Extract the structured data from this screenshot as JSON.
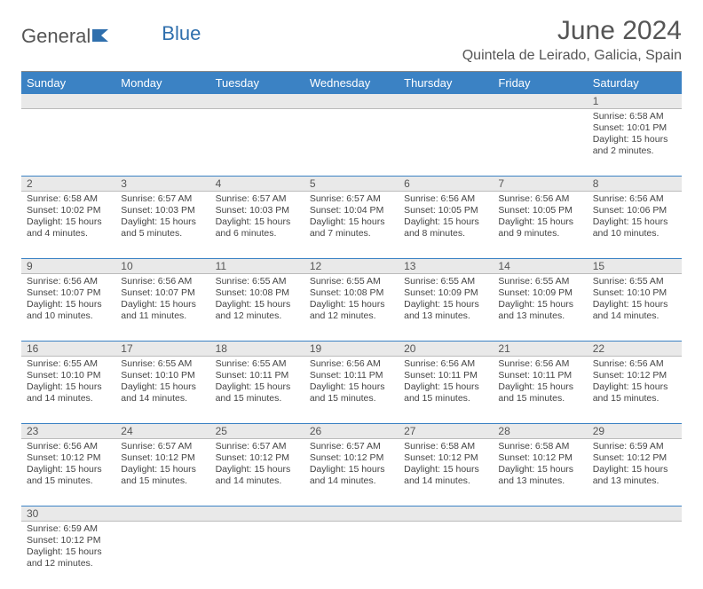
{
  "brand": {
    "part1": "General",
    "part2": "Blue"
  },
  "title": "June 2024",
  "location": "Quintela de Leirado, Galicia, Spain",
  "colors": {
    "header_bg": "#3b82c4",
    "header_text": "#ffffff",
    "border": "#3b82c4",
    "daynum_bg": "#e9e9e9",
    "text": "#444444",
    "title_color": "#555555"
  },
  "weekdays": [
    "Sunday",
    "Monday",
    "Tuesday",
    "Wednesday",
    "Thursday",
    "Friday",
    "Saturday"
  ],
  "weeks": [
    [
      null,
      null,
      null,
      null,
      null,
      null,
      {
        "n": "1",
        "sr": "Sunrise: 6:58 AM",
        "ss": "Sunset: 10:01 PM",
        "d1": "Daylight: 15 hours",
        "d2": "and 2 minutes."
      }
    ],
    [
      {
        "n": "2",
        "sr": "Sunrise: 6:58 AM",
        "ss": "Sunset: 10:02 PM",
        "d1": "Daylight: 15 hours",
        "d2": "and 4 minutes."
      },
      {
        "n": "3",
        "sr": "Sunrise: 6:57 AM",
        "ss": "Sunset: 10:03 PM",
        "d1": "Daylight: 15 hours",
        "d2": "and 5 minutes."
      },
      {
        "n": "4",
        "sr": "Sunrise: 6:57 AM",
        "ss": "Sunset: 10:03 PM",
        "d1": "Daylight: 15 hours",
        "d2": "and 6 minutes."
      },
      {
        "n": "5",
        "sr": "Sunrise: 6:57 AM",
        "ss": "Sunset: 10:04 PM",
        "d1": "Daylight: 15 hours",
        "d2": "and 7 minutes."
      },
      {
        "n": "6",
        "sr": "Sunrise: 6:56 AM",
        "ss": "Sunset: 10:05 PM",
        "d1": "Daylight: 15 hours",
        "d2": "and 8 minutes."
      },
      {
        "n": "7",
        "sr": "Sunrise: 6:56 AM",
        "ss": "Sunset: 10:05 PM",
        "d1": "Daylight: 15 hours",
        "d2": "and 9 minutes."
      },
      {
        "n": "8",
        "sr": "Sunrise: 6:56 AM",
        "ss": "Sunset: 10:06 PM",
        "d1": "Daylight: 15 hours",
        "d2": "and 10 minutes."
      }
    ],
    [
      {
        "n": "9",
        "sr": "Sunrise: 6:56 AM",
        "ss": "Sunset: 10:07 PM",
        "d1": "Daylight: 15 hours",
        "d2": "and 10 minutes."
      },
      {
        "n": "10",
        "sr": "Sunrise: 6:56 AM",
        "ss": "Sunset: 10:07 PM",
        "d1": "Daylight: 15 hours",
        "d2": "and 11 minutes."
      },
      {
        "n": "11",
        "sr": "Sunrise: 6:55 AM",
        "ss": "Sunset: 10:08 PM",
        "d1": "Daylight: 15 hours",
        "d2": "and 12 minutes."
      },
      {
        "n": "12",
        "sr": "Sunrise: 6:55 AM",
        "ss": "Sunset: 10:08 PM",
        "d1": "Daylight: 15 hours",
        "d2": "and 12 minutes."
      },
      {
        "n": "13",
        "sr": "Sunrise: 6:55 AM",
        "ss": "Sunset: 10:09 PM",
        "d1": "Daylight: 15 hours",
        "d2": "and 13 minutes."
      },
      {
        "n": "14",
        "sr": "Sunrise: 6:55 AM",
        "ss": "Sunset: 10:09 PM",
        "d1": "Daylight: 15 hours",
        "d2": "and 13 minutes."
      },
      {
        "n": "15",
        "sr": "Sunrise: 6:55 AM",
        "ss": "Sunset: 10:10 PM",
        "d1": "Daylight: 15 hours",
        "d2": "and 14 minutes."
      }
    ],
    [
      {
        "n": "16",
        "sr": "Sunrise: 6:55 AM",
        "ss": "Sunset: 10:10 PM",
        "d1": "Daylight: 15 hours",
        "d2": "and 14 minutes."
      },
      {
        "n": "17",
        "sr": "Sunrise: 6:55 AM",
        "ss": "Sunset: 10:10 PM",
        "d1": "Daylight: 15 hours",
        "d2": "and 14 minutes."
      },
      {
        "n": "18",
        "sr": "Sunrise: 6:55 AM",
        "ss": "Sunset: 10:11 PM",
        "d1": "Daylight: 15 hours",
        "d2": "and 15 minutes."
      },
      {
        "n": "19",
        "sr": "Sunrise: 6:56 AM",
        "ss": "Sunset: 10:11 PM",
        "d1": "Daylight: 15 hours",
        "d2": "and 15 minutes."
      },
      {
        "n": "20",
        "sr": "Sunrise: 6:56 AM",
        "ss": "Sunset: 10:11 PM",
        "d1": "Daylight: 15 hours",
        "d2": "and 15 minutes."
      },
      {
        "n": "21",
        "sr": "Sunrise: 6:56 AM",
        "ss": "Sunset: 10:11 PM",
        "d1": "Daylight: 15 hours",
        "d2": "and 15 minutes."
      },
      {
        "n": "22",
        "sr": "Sunrise: 6:56 AM",
        "ss": "Sunset: 10:12 PM",
        "d1": "Daylight: 15 hours",
        "d2": "and 15 minutes."
      }
    ],
    [
      {
        "n": "23",
        "sr": "Sunrise: 6:56 AM",
        "ss": "Sunset: 10:12 PM",
        "d1": "Daylight: 15 hours",
        "d2": "and 15 minutes."
      },
      {
        "n": "24",
        "sr": "Sunrise: 6:57 AM",
        "ss": "Sunset: 10:12 PM",
        "d1": "Daylight: 15 hours",
        "d2": "and 15 minutes."
      },
      {
        "n": "25",
        "sr": "Sunrise: 6:57 AM",
        "ss": "Sunset: 10:12 PM",
        "d1": "Daylight: 15 hours",
        "d2": "and 14 minutes."
      },
      {
        "n": "26",
        "sr": "Sunrise: 6:57 AM",
        "ss": "Sunset: 10:12 PM",
        "d1": "Daylight: 15 hours",
        "d2": "and 14 minutes."
      },
      {
        "n": "27",
        "sr": "Sunrise: 6:58 AM",
        "ss": "Sunset: 10:12 PM",
        "d1": "Daylight: 15 hours",
        "d2": "and 14 minutes."
      },
      {
        "n": "28",
        "sr": "Sunrise: 6:58 AM",
        "ss": "Sunset: 10:12 PM",
        "d1": "Daylight: 15 hours",
        "d2": "and 13 minutes."
      },
      {
        "n": "29",
        "sr": "Sunrise: 6:59 AM",
        "ss": "Sunset: 10:12 PM",
        "d1": "Daylight: 15 hours",
        "d2": "and 13 minutes."
      }
    ],
    [
      {
        "n": "30",
        "sr": "Sunrise: 6:59 AM",
        "ss": "Sunset: 10:12 PM",
        "d1": "Daylight: 15 hours",
        "d2": "and 12 minutes."
      },
      null,
      null,
      null,
      null,
      null,
      null
    ]
  ]
}
